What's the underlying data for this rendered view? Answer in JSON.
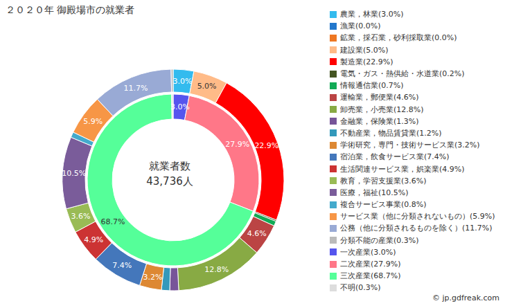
{
  "chart_data": {
    "type": "pie",
    "title": "２０２０年 御殿場市の就業者",
    "center_text": [
      "就業者数",
      "43,736人"
    ],
    "source": "© jp.gdfreak.com",
    "data_labels": true,
    "legend": "right",
    "rings": [
      {
        "categories": [
          "農業，林業(3.0%)",
          "漁業(0.0%)",
          "鉱業，採石業，砂利採取業(0.0%)",
          "建設業(5.0%)",
          "製造業(22.9%)",
          "電気・ガス・熱供給・水道業(0.2%)",
          "情報通信業(0.7%)",
          "運輸業，郵便業(4.6%)",
          "卸売業，小売業(12.8%)",
          "金融業，保険業(1.3%)",
          "不動産業，物品賃貸業(1.2%)",
          "学術研究，専門・技術サービス業(3.2%)",
          "宿泊業，飲食サービス業(7.4%)",
          "生活関連サービス業，娯楽業(4.9%)",
          "教育，学習支援業(3.6%)",
          "医療，福祉(10.5%)",
          "複合サービス事業(0.8%)",
          "サービス業（他に分類されないもの）(5.9%)",
          "公務（他に分類されるものを除く）(11.7%)",
          "分類不能の産業(0.3%)"
        ],
        "values": [
          3.0,
          0.0,
          0.0,
          5.0,
          22.9,
          0.2,
          0.7,
          4.6,
          12.8,
          1.3,
          1.2,
          3.2,
          7.4,
          4.9,
          3.6,
          10.5,
          0.8,
          5.9,
          11.7,
          0.3
        ],
        "value_labels": [
          "3.0%",
          null,
          null,
          "5.0%",
          "22.9%",
          null,
          null,
          "4.6%",
          "12.8%",
          null,
          null,
          "3.2%",
          "7.4%",
          "4.9%",
          "3.6%",
          "10.5%",
          null,
          "5.9%",
          "11.7%",
          null
        ],
        "colors": [
          "#33bbee",
          "#2277cc",
          "#ee7722",
          "#ffbb88",
          "#ff0000",
          "#445522",
          "#11aa55",
          "#bb4444",
          "#88aa44",
          "#775599",
          "#3399bb",
          "#dd8833",
          "#4477bb",
          "#cc3333",
          "#99bb55",
          "#7a5c9a",
          "#44aacc",
          "#f79646",
          "#99aad5",
          "#bbbbbb"
        ]
      },
      {
        "categories": [
          "一次産業(3.0%)",
          "二次産業(27.9%)",
          "三次産業(68.7%)",
          "不明(0.3%)"
        ],
        "values": [
          3.0,
          27.9,
          68.7,
          0.3
        ],
        "value_labels": [
          "3.0%",
          "27.9%",
          "68.7%",
          null
        ],
        "colors": [
          "#5555ee",
          "#ff7788",
          "#55ff99",
          "#dddddd"
        ]
      }
    ]
  }
}
